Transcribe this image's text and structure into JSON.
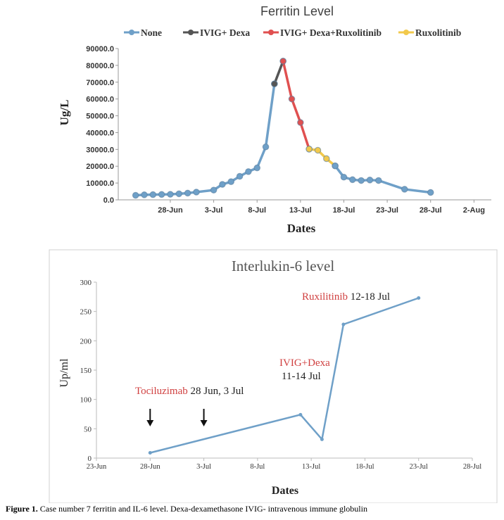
{
  "chart_data": [
    {
      "type": "line",
      "title": "Ferritin Level",
      "xlabel": "Dates",
      "ylabel": "Ug/L",
      "ylim": [
        0,
        90000
      ],
      "y_ticks": [
        "0.0",
        "10000.0",
        "20000.0",
        "30000.0",
        "40000.0",
        "50000.0",
        "60000.0",
        "70000.0",
        "80000.0",
        "90000.0"
      ],
      "x_ticks": [
        "28-Jun",
        "3-Jul",
        "8-Jul",
        "13-Jul",
        "18-Jul",
        "23-Jul",
        "28-Jul",
        "2-Aug"
      ],
      "x_tick_dates": [
        "2020-06-28",
        "2020-07-03",
        "2020-07-08",
        "2020-07-13",
        "2020-07-18",
        "2020-07-23",
        "2020-07-28",
        "2020-08-02"
      ],
      "xlim": [
        "2020-06-22",
        "2020-08-04"
      ],
      "legend_position": "top",
      "grid": false,
      "series": [
        {
          "name": "None",
          "color": "#6fa0c8",
          "points": [
            [
              "2020-06-24",
              2700
            ],
            [
              "2020-06-25",
              3000
            ],
            [
              "2020-06-26",
              3100
            ],
            [
              "2020-06-27",
              3200
            ],
            [
              "2020-06-28",
              3300
            ],
            [
              "2020-06-29",
              3600
            ],
            [
              "2020-06-30",
              4000
            ],
            [
              "2020-07-01",
              4600
            ],
            [
              "2020-07-03",
              5800
            ],
            [
              "2020-07-04",
              9200
            ],
            [
              "2020-07-05",
              10800
            ],
            [
              "2020-07-06",
              14000
            ],
            [
              "2020-07-07",
              16800
            ],
            [
              "2020-07-08",
              19000
            ],
            [
              "2020-07-09",
              31500
            ],
            [
              "2020-07-10",
              69000
            ]
          ]
        },
        {
          "name": "IVIG+ Dexa",
          "color": "#555555",
          "points": [
            [
              "2020-07-10",
              69000
            ],
            [
              "2020-07-11",
              82500
            ]
          ]
        },
        {
          "name": "IVIG+ Dexa+Ruxolitinib",
          "color": "#e05050",
          "points": [
            [
              "2020-07-11",
              82500
            ],
            [
              "2020-07-12",
              60000
            ],
            [
              "2020-07-13",
              46000
            ],
            [
              "2020-07-14",
              30200
            ]
          ]
        },
        {
          "name": "Ruxolitinib",
          "color": "#f2c94c",
          "points": [
            [
              "2020-07-14",
              30200
            ],
            [
              "2020-07-15",
              29500
            ],
            [
              "2020-07-16",
              24500
            ],
            [
              "2020-07-17",
              20200
            ]
          ]
        },
        {
          "name": "None",
          "color": "#6fa0c8",
          "points": [
            [
              "2020-07-17",
              20200
            ],
            [
              "2020-07-18",
              13500
            ],
            [
              "2020-07-19",
              12000
            ],
            [
              "2020-07-20",
              11500
            ],
            [
              "2020-07-21",
              11800
            ],
            [
              "2020-07-22",
              11500
            ],
            [
              "2020-07-25",
              6300
            ],
            [
              "2020-07-28",
              4400
            ]
          ]
        }
      ]
    },
    {
      "type": "line",
      "title": "Interlukin-6  level",
      "xlabel": "Dates",
      "ylabel": "Up/ml",
      "ylim": [
        0,
        300
      ],
      "y_ticks": [
        "0",
        "50",
        "100",
        "150",
        "200",
        "250",
        "300"
      ],
      "x_ticks": [
        "23-Jun",
        "28-Jun",
        "3-Jul",
        "8-Jul",
        "13-Jul",
        "18-Jul",
        "23-Jul",
        "28-Jul"
      ],
      "x_tick_dates": [
        "2020-06-23",
        "2020-06-28",
        "2020-07-03",
        "2020-07-08",
        "2020-07-13",
        "2020-07-18",
        "2020-07-23",
        "2020-07-28"
      ],
      "xlim": [
        "2020-06-23",
        "2020-07-28"
      ],
      "grid": false,
      "series": [
        {
          "name": "",
          "color": "#6fa0c8",
          "points": [
            [
              "2020-06-28",
              9
            ],
            [
              "2020-07-12",
              74
            ],
            [
              "2020-07-14",
              32
            ],
            [
              "2020-07-16",
              228
            ],
            [
              "2020-07-23",
              273
            ]
          ]
        }
      ],
      "annotations": [
        {
          "drug": "Tociluzimab",
          "dates": "28 Jun, 3 Jul",
          "drug_color": "#d04040"
        },
        {
          "drug": "IVIG+Dexa",
          "dates": "11-14 Jul",
          "drug_color": "#d04040"
        },
        {
          "drug": "Ruxilitinib",
          "dates": "12-18 Jul",
          "drug_color": "#d04040"
        }
      ],
      "arrows_at": [
        "2020-06-28",
        "2020-07-03"
      ]
    }
  ],
  "caption": {
    "label": "Figure 1.",
    "text": " Case number 7 ferritin and IL-6 level. Dexa-dexamethasone   IVIG- intravenous immune globulin"
  }
}
